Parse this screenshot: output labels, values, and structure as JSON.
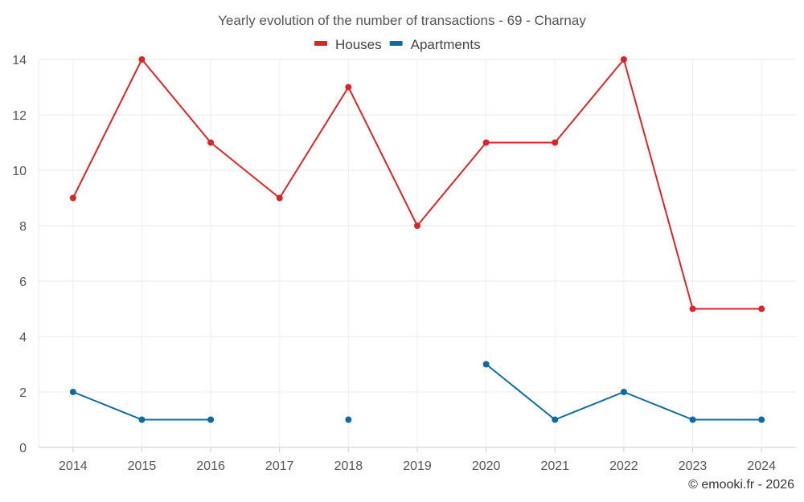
{
  "chart_data": {
    "type": "line",
    "title": "Yearly evolution of the number of transactions - 69 - Charnay",
    "categories": [
      "2014",
      "2015",
      "2016",
      "2017",
      "2018",
      "2019",
      "2020",
      "2021",
      "2022",
      "2023",
      "2024"
    ],
    "series": [
      {
        "name": "Houses",
        "color": "#d62728",
        "values": [
          9,
          14,
          11,
          9,
          13,
          8,
          11,
          11,
          14,
          5,
          5
        ]
      },
      {
        "name": "Apartments",
        "color": "#0f6aa0",
        "values": [
          2,
          1,
          1,
          null,
          1,
          null,
          3,
          1,
          2,
          1,
          1
        ]
      }
    ],
    "ylim": [
      0,
      14
    ],
    "yticks": [
      0,
      2,
      4,
      6,
      8,
      10,
      12,
      14
    ],
    "xlabel": "",
    "ylabel": "",
    "grid": true,
    "legend": "top-center"
  },
  "footer": {
    "credit": "© emooki.fr - 2026"
  }
}
